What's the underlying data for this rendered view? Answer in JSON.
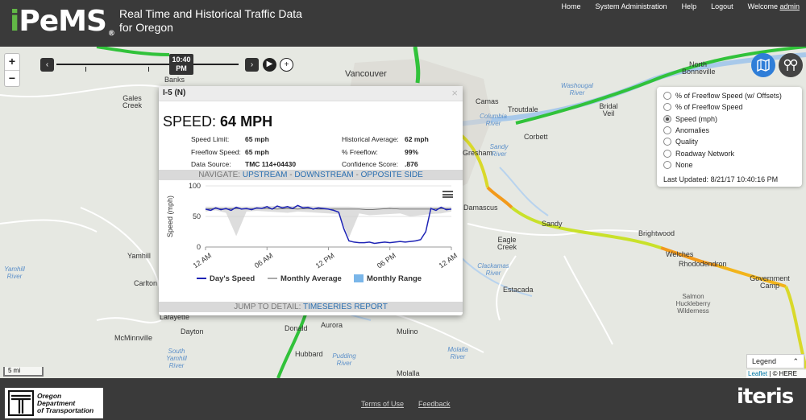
{
  "header": {
    "logo": "PeMS",
    "logo_i": "i",
    "logo_reg": "®",
    "title": "Real Time and Historical Traffic Data for Oregon",
    "nav": [
      "Home",
      "System Administration",
      "Help",
      "Logout"
    ],
    "welcome": "Welcome",
    "user": "admin"
  },
  "map": {
    "zoom_in": "+",
    "zoom_out": "−",
    "time": "10:40 PM",
    "scale": "5 mi",
    "labels": {
      "banks": "Banks",
      "gales_creek": "Gales Creek",
      "vancouver": "Vancouver",
      "camas": "Camas",
      "columbia_river": "Columbia River",
      "troutdale": "Troutdale",
      "gresham": "Gresham",
      "corbett": "Corbett",
      "sandy_river": "Sandy River",
      "damascus": "Damascus",
      "sandy": "Sandy",
      "eagle_creek": "Eagle Creek",
      "estacada": "Estacada",
      "clackamas_river": "Clackamas River",
      "brightwood": "Brightwood",
      "welches": "Welches",
      "rhododendron": "Rhododendron",
      "government_camp": "Government Camp",
      "salmon_huckleberry": "Salmon Huckleberry Wilderness",
      "north_bonneville": "North Bonneville",
      "bridal_veil": "Bridal Veil",
      "washougal_river": "Washougal River",
      "yamhill": "Yamhill",
      "carlton": "Carlton",
      "yamhill_river": "Yamhill River",
      "lafayette": "Lafayette",
      "dayton": "Dayton",
      "mcminnville": "McMinnville",
      "aurora": "Aurora",
      "donald": "Donald",
      "hubbard": "Hubbard",
      "mulino": "Mulino",
      "molalla": "Molalla",
      "molalla_river": "Molalla River",
      "pudding_river": "Pudding River",
      "yamhill_river_south": "South Yamhill River"
    },
    "shields": [
      "26",
      "205",
      "500",
      "211",
      "26",
      "224",
      "211",
      "26",
      "14",
      "213"
    ]
  },
  "layers": {
    "options": [
      "% of Freeflow Speed (w/ Offsets)",
      "% of Freeflow Speed",
      "Speed (mph)",
      "Anomalies",
      "Quality",
      "Roadway Network",
      "None"
    ],
    "selected": 2,
    "last_updated_label": "Last Updated:",
    "last_updated": "8/21/17 10:40:16 PM"
  },
  "legend_button": "Legend",
  "attribution": {
    "leaflet": "Leaflet",
    "here": "© HERE"
  },
  "popup": {
    "title": "I-5 (N)",
    "close": "×",
    "speed_label": "SPEED:",
    "speed_value": "64 MPH",
    "left": [
      {
        "label": "Speed Limit:",
        "value": "65 mph"
      },
      {
        "label": "Freeflow Speed:",
        "value": "65 mph"
      },
      {
        "label": "Data Source:",
        "value": "TMC 114+04430"
      }
    ],
    "right": [
      {
        "label": "Historical Average:",
        "value": "62 mph"
      },
      {
        "label": "% Freeflow:",
        "value": "99%"
      },
      {
        "label": "Confidence Score:",
        "value": ".876"
      }
    ],
    "navigate_label": "NAVIGATE:",
    "upstream": "UPSTREAM",
    "downstream": "DOWNSTREAM",
    "opposite": "OPPOSITE SIDE",
    "separator": "-",
    "jump_label": "JUMP TO DETAIL:",
    "timeseries": "TIMESERIES REPORT"
  },
  "chart_data": {
    "type": "line",
    "title": "",
    "xlabel": "",
    "ylabel": "Speed (mph)",
    "ylim": [
      0,
      100
    ],
    "xlim": [
      0,
      24
    ],
    "yticks": [
      0,
      50,
      100
    ],
    "xticks": [
      {
        "value": 0,
        "label": "12 AM"
      },
      {
        "value": 6,
        "label": "06 AM"
      },
      {
        "value": 12,
        "label": "12 PM"
      },
      {
        "value": 18,
        "label": "06 PM"
      },
      {
        "value": 24,
        "label": "12 AM"
      }
    ],
    "legend_position": "bottom",
    "series": [
      {
        "name": "Day's Speed",
        "color": "#1d23b5",
        "x": [
          0,
          0.5,
          1,
          1.5,
          2,
          2.5,
          3,
          3.5,
          4,
          4.5,
          5,
          5.5,
          6,
          6.5,
          7,
          7.5,
          8,
          8.5,
          9,
          9.5,
          10,
          10.5,
          11,
          11.5,
          12,
          12.5,
          13,
          13.5,
          14,
          14.5,
          15,
          15.5,
          16,
          16.5,
          17,
          17.5,
          18,
          18.5,
          19,
          19.5,
          20,
          20.5,
          21,
          21.5,
          22,
          22.5,
          23,
          23.5,
          24
        ],
        "y": [
          62,
          60,
          64,
          61,
          63,
          60,
          65,
          62,
          63,
          61,
          64,
          63,
          66,
          62,
          67,
          64,
          66,
          63,
          68,
          64,
          65,
          62,
          64,
          63,
          62,
          60,
          57,
          30,
          10,
          8,
          7,
          7,
          8,
          6,
          7,
          8,
          7,
          8,
          9,
          8,
          9,
          10,
          12,
          25,
          63,
          60,
          65,
          61,
          62
        ]
      },
      {
        "name": "Monthly Average",
        "color": "#555555",
        "x": [
          0,
          1,
          2,
          3,
          4,
          5,
          6,
          7,
          8,
          9,
          10,
          11,
          12,
          13,
          14,
          15,
          16,
          17,
          18,
          19,
          20,
          21,
          22,
          23,
          24
        ],
        "y": [
          62,
          63,
          62,
          63,
          62,
          63,
          63,
          62,
          63,
          62,
          63,
          62,
          62,
          62,
          62,
          62,
          61,
          62,
          63,
          62,
          62,
          62,
          62,
          63,
          62
        ]
      },
      {
        "name": "Monthly Range",
        "color": "#7ab6e9",
        "x": [
          0,
          1,
          2,
          3,
          4,
          5,
          6,
          7,
          8,
          9,
          10,
          11,
          12,
          13,
          14,
          15,
          16,
          17,
          18,
          19,
          20,
          21,
          22,
          23,
          24
        ],
        "low": [
          58,
          60,
          56,
          18,
          58,
          59,
          58,
          57,
          56,
          58,
          57,
          56,
          55,
          54,
          15,
          55,
          52,
          53,
          54,
          55,
          50,
          52,
          54,
          55,
          58
        ],
        "high": [
          66,
          66,
          66,
          66,
          66,
          66,
          67,
          67,
          67,
          67,
          67,
          66,
          66,
          66,
          66,
          65,
          65,
          65,
          66,
          66,
          66,
          66,
          66,
          66,
          66
        ]
      }
    ]
  },
  "footer": {
    "odot_line1": "Oregon",
    "odot_line2": "Department",
    "odot_line3": "of Transportation",
    "links": [
      "Terms of Use",
      "Feedback"
    ],
    "brand": "iteris"
  },
  "colors": {
    "header_bg": "#3a3a3a",
    "accent_green": "#62b846",
    "link_blue": "#2b6fb0",
    "traffic_green": "#31c23a",
    "traffic_yellow": "#d9d92a",
    "traffic_orange": "#f29a1b",
    "traffic_red": "#e23b1f"
  }
}
